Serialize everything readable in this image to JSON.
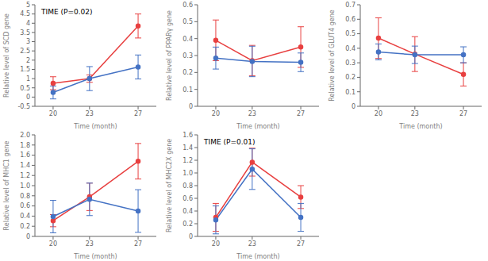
{
  "chart_data": [
    {
      "type": "line",
      "title": "TIME (P=0.02)",
      "x": [
        20,
        23,
        27
      ],
      "xlim": [
        18.5,
        28.5
      ],
      "xticks": [
        20,
        23,
        27
      ],
      "xlabel": "Time (month)",
      "ylabel": "Relative level of SCD gene",
      "ylim": [
        -0.5,
        5
      ],
      "yticks": [
        -0.5,
        0,
        0.5,
        1,
        1.5,
        2,
        2.5,
        3,
        3.5,
        4,
        4.5,
        5
      ],
      "grid": false,
      "series": [
        {
          "color": "#e84040",
          "marker": "circle",
          "values": [
            0.75,
            1.0,
            3.85
          ],
          "errors": [
            0.35,
            0.2,
            0.65
          ]
        },
        {
          "color": "#4472c4",
          "marker": "circle",
          "values": [
            0.25,
            1.0,
            1.63
          ],
          "errors": [
            0.35,
            0.65,
            0.65
          ]
        }
      ]
    },
    {
      "type": "line",
      "x": [
        20,
        23,
        27
      ],
      "xlim": [
        18.5,
        28.5
      ],
      "xticks": [
        20,
        23,
        27
      ],
      "xlabel": "Time (month)",
      "ylabel": "Relative level of PPARγ  gene",
      "ylim": [
        0,
        0.6
      ],
      "yticks": [
        0,
        0.1,
        0.2,
        0.3,
        0.4,
        0.5,
        0.6
      ],
      "grid": false,
      "series": [
        {
          "color": "#e84040",
          "marker": "circle",
          "values": [
            0.39,
            0.27,
            0.35
          ],
          "errors": [
            0.12,
            0.09,
            0.12
          ]
        },
        {
          "color": "#4472c4",
          "marker": "circle",
          "values": [
            0.285,
            0.265,
            0.26
          ],
          "errors": [
            0.065,
            0.09,
            0.055
          ]
        }
      ]
    },
    {
      "type": "line",
      "x": [
        20,
        23,
        27
      ],
      "xlim": [
        18.5,
        28.5
      ],
      "xticks": [
        20,
        23,
        27
      ],
      "xlabel": "Time (month)",
      "ylabel": "Relative level of GLUT4 gene",
      "ylim": [
        0,
        0.7
      ],
      "yticks": [
        0,
        0.1,
        0.2,
        0.3,
        0.4,
        0.5,
        0.6,
        0.7
      ],
      "grid": false,
      "series": [
        {
          "color": "#e84040",
          "marker": "circle",
          "values": [
            0.47,
            0.36,
            0.22
          ],
          "errors": [
            0.14,
            0.12,
            0.08
          ]
        },
        {
          "color": "#4472c4",
          "marker": "circle",
          "values": [
            0.375,
            0.355,
            0.355
          ],
          "errors": [
            0.055,
            0.06,
            0.055
          ]
        }
      ]
    },
    {
      "type": "line",
      "x": [
        20,
        23,
        27
      ],
      "xlim": [
        18.5,
        28.5
      ],
      "xticks": [
        20,
        23,
        27
      ],
      "xlabel": "Time (month)",
      "ylabel": "Relative level of MHC1 gene",
      "ylim": [
        0,
        2.0
      ],
      "yticks": [
        0,
        0.2,
        0.4,
        0.6,
        0.8,
        {
          "value": 1.0,
          "label": "1.0"
        },
        1.2,
        1.4,
        1.6,
        1.8,
        {
          "value": 2.0,
          "label": "2.0"
        }
      ],
      "grid": false,
      "series": [
        {
          "color": "#e84040",
          "marker": "circle",
          "values": [
            0.31,
            0.78,
            1.48
          ],
          "errors": [
            0.12,
            0.27,
            0.35
          ]
        },
        {
          "color": "#4472c4",
          "marker": "circle",
          "values": [
            0.39,
            0.73,
            0.5
          ],
          "errors": [
            0.32,
            0.32,
            0.42
          ]
        }
      ]
    },
    {
      "type": "line",
      "title": "TIME (P=0.01)",
      "x": [
        20,
        23,
        27
      ],
      "xlim": [
        18.5,
        28.5
      ],
      "xticks": [
        20,
        23,
        27
      ],
      "xlabel": "Time (month)",
      "ylabel": "Relative level of MHC2X gene",
      "ylim": [
        0,
        1.6
      ],
      "yticks": [
        0,
        0.2,
        0.4,
        0.6,
        0.8,
        {
          "value": 1.0,
          "label": "1.0"
        },
        1.2,
        1.4,
        1.6
      ],
      "grid": false,
      "series": [
        {
          "color": "#e84040",
          "marker": "circle",
          "values": [
            0.3,
            1.17,
            0.62
          ],
          "errors": [
            0.22,
            0.22,
            0.18
          ]
        },
        {
          "color": "#4472c4",
          "marker": "circle",
          "values": [
            0.26,
            1.06,
            0.3
          ],
          "errors": [
            0.22,
            0.32,
            0.22
          ]
        }
      ]
    }
  ]
}
